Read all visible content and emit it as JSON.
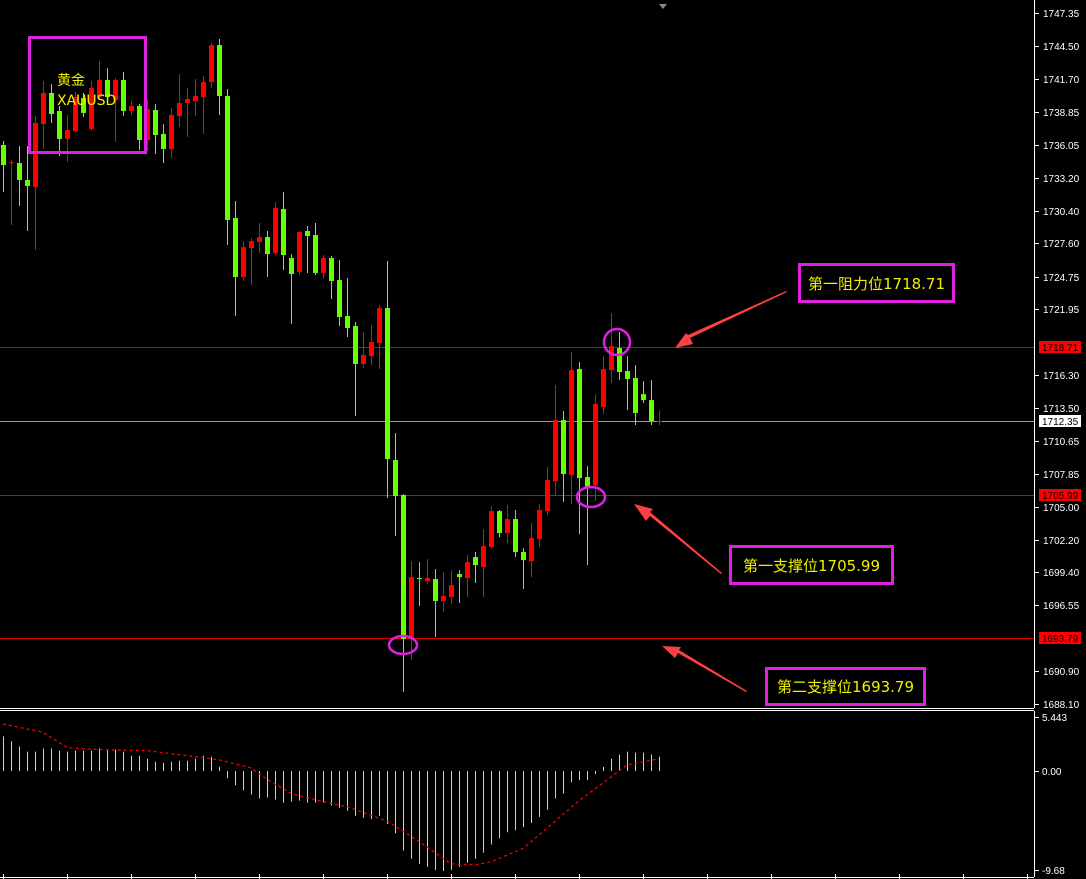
{
  "symbol": {
    "name_cn": "黄金",
    "ticker": "XAUUSD"
  },
  "annotations": {
    "resistance_1": "第一阻力位1718.71",
    "support_1": "第一支撑位1705.99",
    "support_2": "第二支撑位1693.79"
  },
  "colors": {
    "bull": "#ff0000",
    "bear": "#66ff00",
    "level_line": "#e00000",
    "bid_line": "#9a9a9a",
    "annotation_border": "#e020e0",
    "annotation_text": "#f0f000",
    "arrow": "#ff4040",
    "background": "#000000"
  },
  "price_axis": {
    "ticks": [
      "1747.35",
      "1744.50",
      "1741.70",
      "1738.85",
      "1736.05",
      "1733.20",
      "1730.40",
      "1727.60",
      "1724.75",
      "1721.95",
      "1716.30",
      "1713.50",
      "1710.65",
      "1707.85",
      "1705.00",
      "1702.20",
      "1699.40",
      "1696.55",
      "1690.90",
      "1688.10"
    ],
    "tags": [
      {
        "label": "1718.71",
        "style": "red"
      },
      {
        "label": "1712.35",
        "style": "white"
      },
      {
        "label": "1705.99",
        "style": "red"
      },
      {
        "label": "1693.79",
        "style": "red"
      }
    ]
  },
  "macd_axis": {
    "ticks": [
      "5.443",
      "0.00",
      "-9.68"
    ]
  },
  "chart_data": [
    {
      "type": "candlestick",
      "symbol": "XAUUSD",
      "ylim": [
        1688.1,
        1747.35
      ],
      "grid": false,
      "horizontal_levels": [
        1718.71,
        1712.35,
        1705.99,
        1693.79
      ],
      "ohlc_format": [
        "open",
        "high",
        "low",
        "close"
      ],
      "candles": [
        [
          1736.03,
          1736.37,
          1732.0,
          1734.31
        ],
        [
          1734.49,
          1734.74,
          1729.17,
          1734.55
        ],
        [
          1734.49,
          1735.95,
          1730.8,
          1733.03
        ],
        [
          1733.03,
          1735.95,
          1728.66,
          1732.52
        ],
        [
          1732.43,
          1738.52,
          1727.03,
          1737.92
        ],
        [
          1737.83,
          1741.52,
          1735.69,
          1740.49
        ],
        [
          1740.49,
          1741.26,
          1737.92,
          1738.69
        ],
        [
          1738.95,
          1739.38,
          1735.09,
          1736.55
        ],
        [
          1736.55,
          1738.6,
          1734.57,
          1737.32
        ],
        [
          1737.23,
          1740.58,
          1737.15,
          1740.15
        ],
        [
          1740.06,
          1740.49,
          1738.43,
          1738.78
        ],
        [
          1737.4,
          1741.52,
          1737.23,
          1740.92
        ],
        [
          1740.15,
          1743.24,
          1739.89,
          1741.61
        ],
        [
          1741.61,
          1742.63,
          1739.72,
          1740.15
        ],
        [
          1739.89,
          1741.78,
          1736.29,
          1741.61
        ],
        [
          1741.61,
          1742.29,
          1738.52,
          1738.95
        ],
        [
          1738.95,
          1739.8,
          1738.6,
          1739.38
        ],
        [
          1739.38,
          1739.55,
          1735.6,
          1736.46
        ],
        [
          1736.46,
          1739.98,
          1735.52,
          1739.12
        ],
        [
          1739.03,
          1739.55,
          1735.26,
          1736.89
        ],
        [
          1736.98,
          1737.83,
          1734.49,
          1735.69
        ],
        [
          1735.69,
          1739.2,
          1734.92,
          1738.6
        ],
        [
          1738.52,
          1742.12,
          1737.57,
          1739.63
        ],
        [
          1739.63,
          1740.92,
          1736.72,
          1739.98
        ],
        [
          1739.8,
          1741.69,
          1738.52,
          1740.23
        ],
        [
          1740.15,
          1741.95,
          1736.98,
          1741.43
        ],
        [
          1741.43,
          1744.77,
          1740.92,
          1744.6
        ],
        [
          1744.6,
          1745.12,
          1738.6,
          1740.23
        ],
        [
          1740.23,
          1740.83,
          1727.46,
          1729.6
        ],
        [
          1729.77,
          1731.23,
          1721.37,
          1724.71
        ],
        [
          1724.71,
          1727.8,
          1724.37,
          1727.28
        ],
        [
          1727.2,
          1728.06,
          1724.03,
          1727.8
        ],
        [
          1727.71,
          1729.34,
          1726.77,
          1728.14
        ],
        [
          1728.14,
          1728.66,
          1724.71,
          1726.68
        ],
        [
          1726.77,
          1731.14,
          1726.6,
          1730.63
        ],
        [
          1730.54,
          1732.0,
          1725.31,
          1726.6
        ],
        [
          1726.34,
          1726.68,
          1720.69,
          1724.97
        ],
        [
          1725.14,
          1728.66,
          1724.88,
          1728.57
        ],
        [
          1728.66,
          1729.09,
          1725.06,
          1728.23
        ],
        [
          1728.31,
          1729.34,
          1724.88,
          1725.06
        ],
        [
          1725.06,
          1726.6,
          1724.54,
          1726.34
        ],
        [
          1726.34,
          1726.51,
          1722.83,
          1724.37
        ],
        [
          1724.45,
          1726.17,
          1720.51,
          1721.28
        ],
        [
          1721.37,
          1724.63,
          1719.57,
          1720.34
        ],
        [
          1720.51,
          1720.86,
          1712.79,
          1717.25
        ],
        [
          1717.25,
          1720.0,
          1716.9,
          1718.02
        ],
        [
          1717.93,
          1720.6,
          1717.16,
          1719.14
        ],
        [
          1719.05,
          1722.31,
          1716.82,
          1722.05
        ],
        [
          1722.05,
          1726.08,
          1705.76,
          1709.1
        ],
        [
          1709.02,
          1711.33,
          1702.5,
          1705.93
        ],
        [
          1706.02,
          1706.1,
          1689.12,
          1693.67
        ],
        [
          1693.67,
          1700.35,
          1691.86,
          1698.98
        ],
        [
          1698.9,
          1700.27,
          1696.5,
          1698.81
        ],
        [
          1698.64,
          1700.52,
          1698.38,
          1698.9
        ],
        [
          1698.81,
          1699.67,
          1693.84,
          1696.93
        ],
        [
          1696.93,
          1699.41,
          1696.0,
          1697.36
        ],
        [
          1697.27,
          1699.58,
          1696.67,
          1698.3
        ],
        [
          1699.24,
          1699.58,
          1696.76,
          1698.98
        ],
        [
          1698.9,
          1700.87,
          1697.27,
          1700.27
        ],
        [
          1700.7,
          1701.13,
          1698.47,
          1700.01
        ],
        [
          1699.84,
          1703.1,
          1697.27,
          1701.64
        ],
        [
          1701.56,
          1705.07,
          1701.47,
          1704.64
        ],
        [
          1704.64,
          1704.73,
          1702.41,
          1702.76
        ],
        [
          1702.76,
          1705.16,
          1701.9,
          1703.96
        ],
        [
          1703.96,
          1704.73,
          1700.7,
          1701.13
        ],
        [
          1701.13,
          1701.47,
          1697.96,
          1700.44
        ],
        [
          1700.35,
          1703.61,
          1698.98,
          1702.33
        ],
        [
          1702.24,
          1705.24,
          1701.56,
          1704.73
        ],
        [
          1704.64,
          1708.41,
          1704.3,
          1707.3
        ],
        [
          1707.21,
          1715.45,
          1706.02,
          1712.45
        ],
        [
          1712.45,
          1713.22,
          1705.42,
          1707.82
        ],
        [
          1707.73,
          1718.28,
          1705.25,
          1716.73
        ],
        [
          1716.82,
          1717.42,
          1702.67,
          1707.47
        ],
        [
          1707.56,
          1708.5,
          1700.01,
          1706.7
        ],
        [
          1706.84,
          1714.67,
          1705.5,
          1713.82
        ],
        [
          1713.56,
          1717.93,
          1712.96,
          1716.82
        ],
        [
          1716.73,
          1721.62,
          1715.62,
          1718.79
        ],
        [
          1718.62,
          1720.0,
          1715.87,
          1716.56
        ],
        [
          1716.65,
          1717.93,
          1713.3,
          1715.96
        ],
        [
          1716.05,
          1717.16,
          1712.02,
          1713.05
        ],
        [
          1714.67,
          1715.79,
          1713.9,
          1714.16
        ],
        [
          1714.16,
          1715.87,
          1712.02,
          1712.36
        ],
        [
          1712.33,
          1713.3,
          1712.0,
          1712.36
        ]
      ],
      "highlighted_points": [
        1718.71,
        1705.99,
        1693.79
      ]
    },
    {
      "type": "bar",
      "indicator": "MACD",
      "ylim": [
        -9.68,
        5.443
      ],
      "histogram": [
        3.4,
        2.9,
        2.4,
        1.9,
        1.9,
        2.2,
        2.2,
        2.0,
        1.9,
        2.0,
        2.0,
        2.0,
        2.2,
        2.1,
        2.1,
        1.9,
        1.5,
        1.5,
        1.2,
        0.9,
        0.8,
        0.9,
        1.0,
        1.0,
        1.2,
        1.5,
        1.4,
        0.4,
        -0.7,
        -1.4,
        -1.9,
        -2.3,
        -2.7,
        -2.6,
        -2.8,
        -3.1,
        -3.0,
        -2.9,
        -3.1,
        -3.1,
        -3.1,
        -3.4,
        -3.6,
        -3.9,
        -4.4,
        -4.6,
        -4.7,
        -4.4,
        -5.2,
        -6.1,
        -7.8,
        -8.6,
        -9.1,
        -9.4,
        -9.7,
        -9.8,
        -9.7,
        -9.4,
        -9.0,
        -8.6,
        -8.0,
        -7.2,
        -6.6,
        -6.0,
        -5.8,
        -5.5,
        -5.1,
        -4.5,
        -3.8,
        -2.7,
        -2.2,
        -1.1,
        -0.9,
        -0.9,
        -0.3,
        0.4,
        1.2,
        1.6,
        1.9,
        1.8,
        1.8,
        1.6,
        1.4
      ],
      "signal": [
        4.6,
        4.44,
        4.28,
        4.12,
        3.96,
        3.8,
        3.3,
        2.8,
        2.3,
        2.25,
        2.2,
        2.15,
        2.1,
        2.08,
        2.07,
        2.05,
        2.03,
        2.02,
        2.0,
        1.9,
        1.8,
        1.7,
        1.6,
        1.5,
        1.4,
        1.3,
        1.2,
        1.1,
        0.9,
        0.7,
        0.5,
        0.3,
        -0.25,
        -0.8,
        -1.27,
        -1.73,
        -2.2,
        -2.4,
        -2.6,
        -2.8,
        -3.0,
        -3.17,
        -3.33,
        -3.5,
        -3.78,
        -4.06,
        -4.34,
        -4.62,
        -4.9,
        -5.4,
        -5.9,
        -6.4,
        -6.9,
        -7.45,
        -8.0,
        -8.55,
        -9.1,
        -9.13,
        -9.17,
        -9.2,
        -9.05,
        -8.9,
        -8.58,
        -8.25,
        -7.93,
        -7.6,
        -6.93,
        -6.27,
        -5.6,
        -4.93,
        -4.25,
        -3.58,
        -2.9,
        -2.33,
        -1.75,
        -1.18,
        -0.6,
        0.0,
        0.6,
        0.75,
        0.9,
        1.05,
        1.2
      ]
    }
  ]
}
